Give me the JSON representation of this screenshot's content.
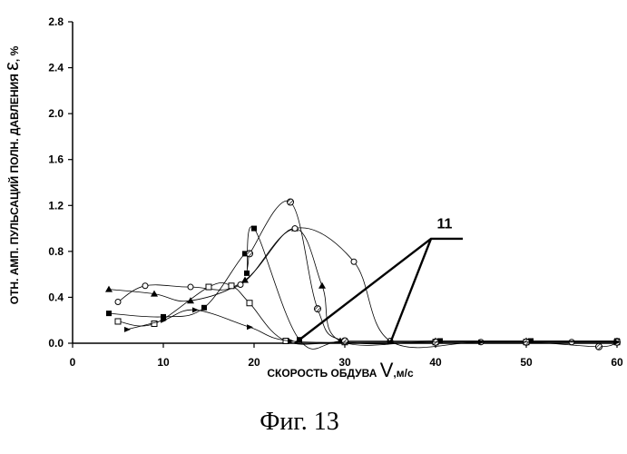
{
  "chart_data": {
    "type": "line",
    "xlabel_prefix": "СКОРОСТЬ ОБДУВА ",
    "xlabel_symbol": "V",
    "xlabel_unit": ",м/с",
    "ylabel_prefix": "ОТН. АМП. ПУЛЬСАЦИЙ ПОЛН. ДАВЛЕНИЯ ",
    "ylabel_symbol": "ε",
    "ylabel_unit": ", %",
    "xlim": [
      0,
      60
    ],
    "ylim": [
      0,
      2.8
    ],
    "x_ticks": [
      "0",
      "10",
      "20",
      "30",
      "40",
      "50",
      "60"
    ],
    "y_ticks": [
      "0.0",
      "0.4",
      "0.8",
      "1.2",
      "1.6",
      "2.0",
      "2.4",
      "2.8"
    ],
    "grid": false,
    "series": [
      {
        "marker": "triangle",
        "points": [
          [
            4,
            0.47
          ],
          [
            9,
            0.43
          ],
          [
            13,
            0.37
          ],
          [
            19,
            0.55
          ],
          [
            24.5,
            1.0
          ],
          [
            27.5,
            0.5
          ],
          [
            29.5,
            0.02
          ],
          [
            40,
            0.02
          ],
          [
            50,
            0.02
          ],
          [
            60,
            0.02
          ]
        ]
      },
      {
        "marker": "circle-open",
        "points": [
          [
            5,
            0.36
          ],
          [
            8,
            0.5
          ],
          [
            13,
            0.49
          ],
          [
            18.5,
            0.51
          ],
          [
            24.5,
            1.0
          ],
          [
            31,
            0.71
          ],
          [
            35,
            0.02
          ],
          [
            45,
            0.01
          ],
          [
            55,
            0.01
          ],
          [
            60,
            0.01
          ]
        ]
      },
      {
        "marker": "square-open",
        "points": [
          [
            5,
            0.19
          ],
          [
            9,
            0.17
          ],
          [
            15,
            0.49
          ],
          [
            17.5,
            0.5
          ],
          [
            19.5,
            0.35
          ],
          [
            23.5,
            0.02
          ],
          [
            30,
            0.01
          ],
          [
            40,
            0.01
          ],
          [
            50,
            0.01
          ],
          [
            60,
            0.01
          ]
        ]
      },
      {
        "marker": "square-filled",
        "points": [
          [
            4,
            0.26
          ],
          [
            10,
            0.23
          ],
          [
            14.5,
            0.31
          ],
          [
            19,
            0.78
          ],
          [
            19.2,
            0.61
          ],
          [
            20,
            1.0
          ],
          [
            25,
            0.03
          ],
          [
            30,
            0.02
          ],
          [
            40.5,
            0.02
          ],
          [
            50.5,
            0.02
          ],
          [
            60,
            0.02
          ]
        ]
      },
      {
        "marker": "circle-hatched",
        "points": [
          [
            19.5,
            0.78
          ],
          [
            24,
            1.23
          ],
          [
            27,
            0.3
          ],
          [
            30,
            0.02
          ],
          [
            40,
            0.01
          ],
          [
            50,
            0.01
          ],
          [
            58,
            -0.03
          ],
          [
            60,
            0.01
          ]
        ]
      },
      {
        "marker": "triangle-right",
        "points": [
          [
            6,
            0.12
          ],
          [
            10,
            0.2
          ],
          [
            13.5,
            0.29
          ],
          [
            19.5,
            0.14
          ],
          [
            24,
            0.02
          ],
          [
            35,
            0.01
          ],
          [
            45,
            0.01
          ],
          [
            60,
            0.01
          ]
        ]
      },
      {
        "name": "11",
        "marker": "none",
        "bold": true,
        "points": [
          [
            24.5,
            0.0
          ],
          [
            39.5,
            0.91
          ],
          [
            43,
            0.91
          ]
        ]
      },
      {
        "marker": "none",
        "bold": true,
        "points": [
          [
            35,
            0.0
          ],
          [
            39.5,
            0.91
          ]
        ]
      }
    ],
    "annotations": [
      {
        "text": "11",
        "x": 41,
        "y": 1.0
      }
    ]
  },
  "figure_caption": "Фиг. 13"
}
